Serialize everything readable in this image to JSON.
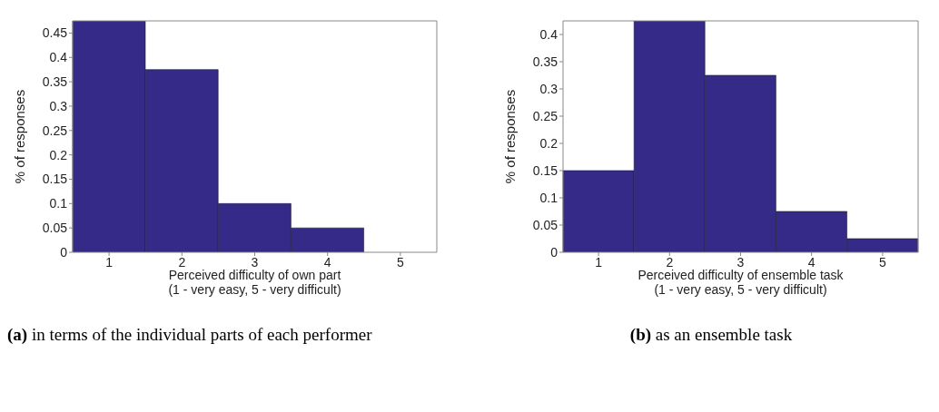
{
  "chart_data": [
    {
      "type": "bar",
      "categories": [
        "1",
        "2",
        "3",
        "4",
        "5"
      ],
      "values": [
        0.475,
        0.375,
        0.1,
        0.05,
        0
      ],
      "color": "#352a87",
      "ylim": [
        0,
        0.475
      ],
      "yticks": [
        0,
        0.05,
        0.1,
        0.15,
        0.2,
        0.25,
        0.3,
        0.35,
        0.4,
        0.45
      ],
      "xlabel": "Perceived difficulty of own part\n(1 - very easy, 5 - very difficult)",
      "ylabel": "% of responses",
      "annotations": [
        "(a)",
        "in terms of the individual parts of each performer"
      ]
    },
    {
      "type": "bar",
      "categories": [
        "1",
        "2",
        "3",
        "4",
        "5"
      ],
      "values": [
        0.15,
        0.425,
        0.325,
        0.075,
        0.025
      ],
      "color": "#352a87",
      "ylim": [
        0,
        0.425
      ],
      "yticks": [
        0,
        0.05,
        0.1,
        0.15,
        0.2,
        0.25,
        0.3,
        0.35,
        0.4
      ],
      "xlabel": "Perceived difficulty of ensemble task\n(1 - very easy, 5 - very difficult)",
      "ylabel": "% of responses",
      "annotations": [
        "(b)",
        "as an ensemble task"
      ]
    }
  ]
}
